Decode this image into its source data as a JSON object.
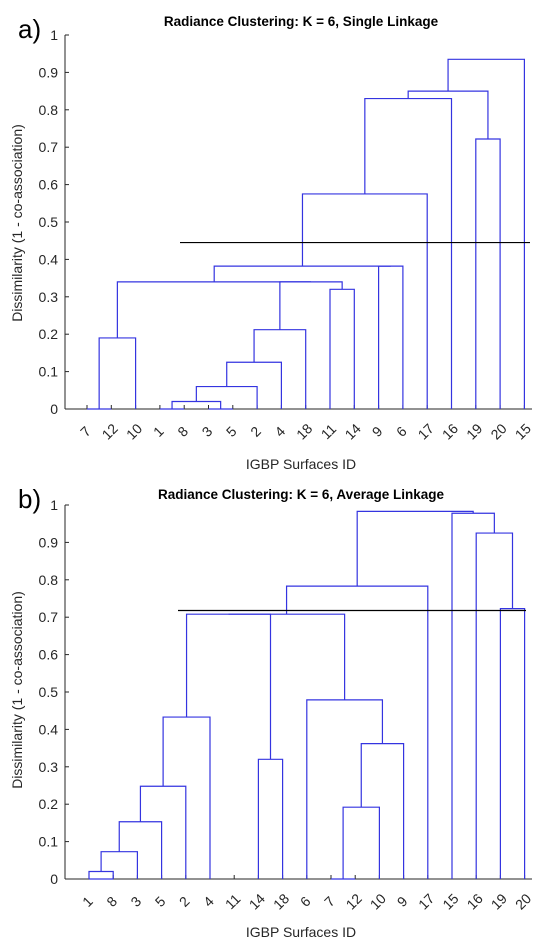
{
  "chart_data": [
    {
      "type": "dendrogram",
      "panel_label": "a)",
      "title": "Radiance Clustering: K = 6, Single Linkage",
      "xlabel": "IGBP Surfaces ID",
      "ylabel": "Dissimilarity (1 - co-association)",
      "ylim": [
        0,
        1
      ],
      "yticks": [
        "0",
        "0.1",
        "0.2",
        "0.3",
        "0.4",
        "0.5",
        "0.6",
        "0.7",
        "0.8",
        "0.9",
        "1"
      ],
      "leaf_order": [
        "7",
        "12",
        "10",
        "1",
        "8",
        "3",
        "5",
        "2",
        "4",
        "18",
        "11",
        "14",
        "9",
        "6",
        "17",
        "16",
        "19",
        "20",
        "15"
      ],
      "cut_line": {
        "value": 0.445
      },
      "merges": [
        {
          "a": "7",
          "b": "12",
          "h": 0.0
        },
        {
          "a": "1",
          "b": "8",
          "h": 0.0
        },
        {
          "a": "3",
          "b": "5",
          "h": 0.0
        },
        {
          "a": "L:1+8",
          "b": "L:3+5",
          "h": 0.02
        },
        {
          "a": "L:1+8+3+5",
          "b": "2",
          "h": 0.06
        },
        {
          "a": "L:1..2",
          "b": "4",
          "h": 0.125
        },
        {
          "a": "L:1..4",
          "b": "18",
          "h": 0.212
        },
        {
          "a": "11",
          "b": "14",
          "h": 0.32
        },
        {
          "a": "L:1..18",
          "b": "L:11+14",
          "h": 0.34
        },
        {
          "a": "L:7+12",
          "b": "10",
          "h": 0.19
        },
        {
          "a": "L:7+12+10",
          "b": "L:1..14",
          "h": 0.34
        },
        {
          "a": "9",
          "b": "6",
          "h": 0.382
        },
        {
          "a": "L:7..14",
          "b": "L:9+6",
          "h": 0.382
        },
        {
          "a": "L:7..6",
          "b": "17",
          "h": 0.575
        },
        {
          "a": "19",
          "b": "20",
          "h": 0.722
        },
        {
          "a": "L:7..17",
          "b": "16",
          "h": 0.83
        },
        {
          "a": "L:7..16",
          "b": "L:19+20",
          "h": 0.85
        },
        {
          "a": "L:7..20",
          "b": "15",
          "h": 0.935
        }
      ]
    },
    {
      "type": "dendrogram",
      "panel_label": "b)",
      "title": "Radiance Clustering: K = 6, Average Linkage",
      "xlabel": "IGBP Surfaces ID",
      "ylabel": "Dissimilarity (1 - co-association)",
      "ylim": [
        0,
        1
      ],
      "yticks": [
        "0",
        "0.1",
        "0.2",
        "0.3",
        "0.4",
        "0.5",
        "0.6",
        "0.7",
        "0.8",
        "0.9",
        "1"
      ],
      "leaf_order": [
        "1",
        "8",
        "3",
        "5",
        "2",
        "4",
        "11",
        "14",
        "18",
        "6",
        "7",
        "12",
        "10",
        "9",
        "17",
        "15",
        "16",
        "19",
        "20"
      ],
      "cut_line": {
        "value": 0.718
      },
      "merges": [
        {
          "a": "1",
          "b": "8",
          "h": 0.0
        },
        {
          "a": "7",
          "b": "12",
          "h": 0.0
        },
        {
          "a": "1",
          "b": "8",
          "h": 0.02
        },
        {
          "a": "L:1+8",
          "b": "3",
          "h": 0.073
        },
        {
          "a": "L:1+8+3",
          "b": "5",
          "h": 0.153
        },
        {
          "a": "L:1..5",
          "b": "2",
          "h": 0.248
        },
        {
          "a": "14",
          "b": "18",
          "h": 0.32
        },
        {
          "a": "L:1..2",
          "b": "4",
          "h": 0.433
        },
        {
          "a": "L:7+12",
          "b": "10",
          "h": 0.192
        },
        {
          "a": "L:7..10",
          "b": "9",
          "h": 0.362
        },
        {
          "a": "6",
          "b": "L:7..9",
          "h": 0.479
        },
        {
          "a": "L:1..4",
          "b": "L:14+18",
          "h": 0.708
        },
        {
          "a": "19",
          "b": "20",
          "h": 0.723
        },
        {
          "a": "L:1..18",
          "b": "L:6..9",
          "h": 0.708
        },
        {
          "a": "L:1..9",
          "b": "17",
          "h": 0.783
        },
        {
          "a": "16",
          "b": "L:19+20",
          "h": 0.925
        },
        {
          "a": "15",
          "b": "L:16..20",
          "h": 0.978
        },
        {
          "a": "L:1..17",
          "b": "L:15..20",
          "h": 0.983
        }
      ]
    }
  ],
  "colors": {
    "tree": "#3434e0",
    "cut_line": "#000000",
    "axis": "#262626"
  }
}
